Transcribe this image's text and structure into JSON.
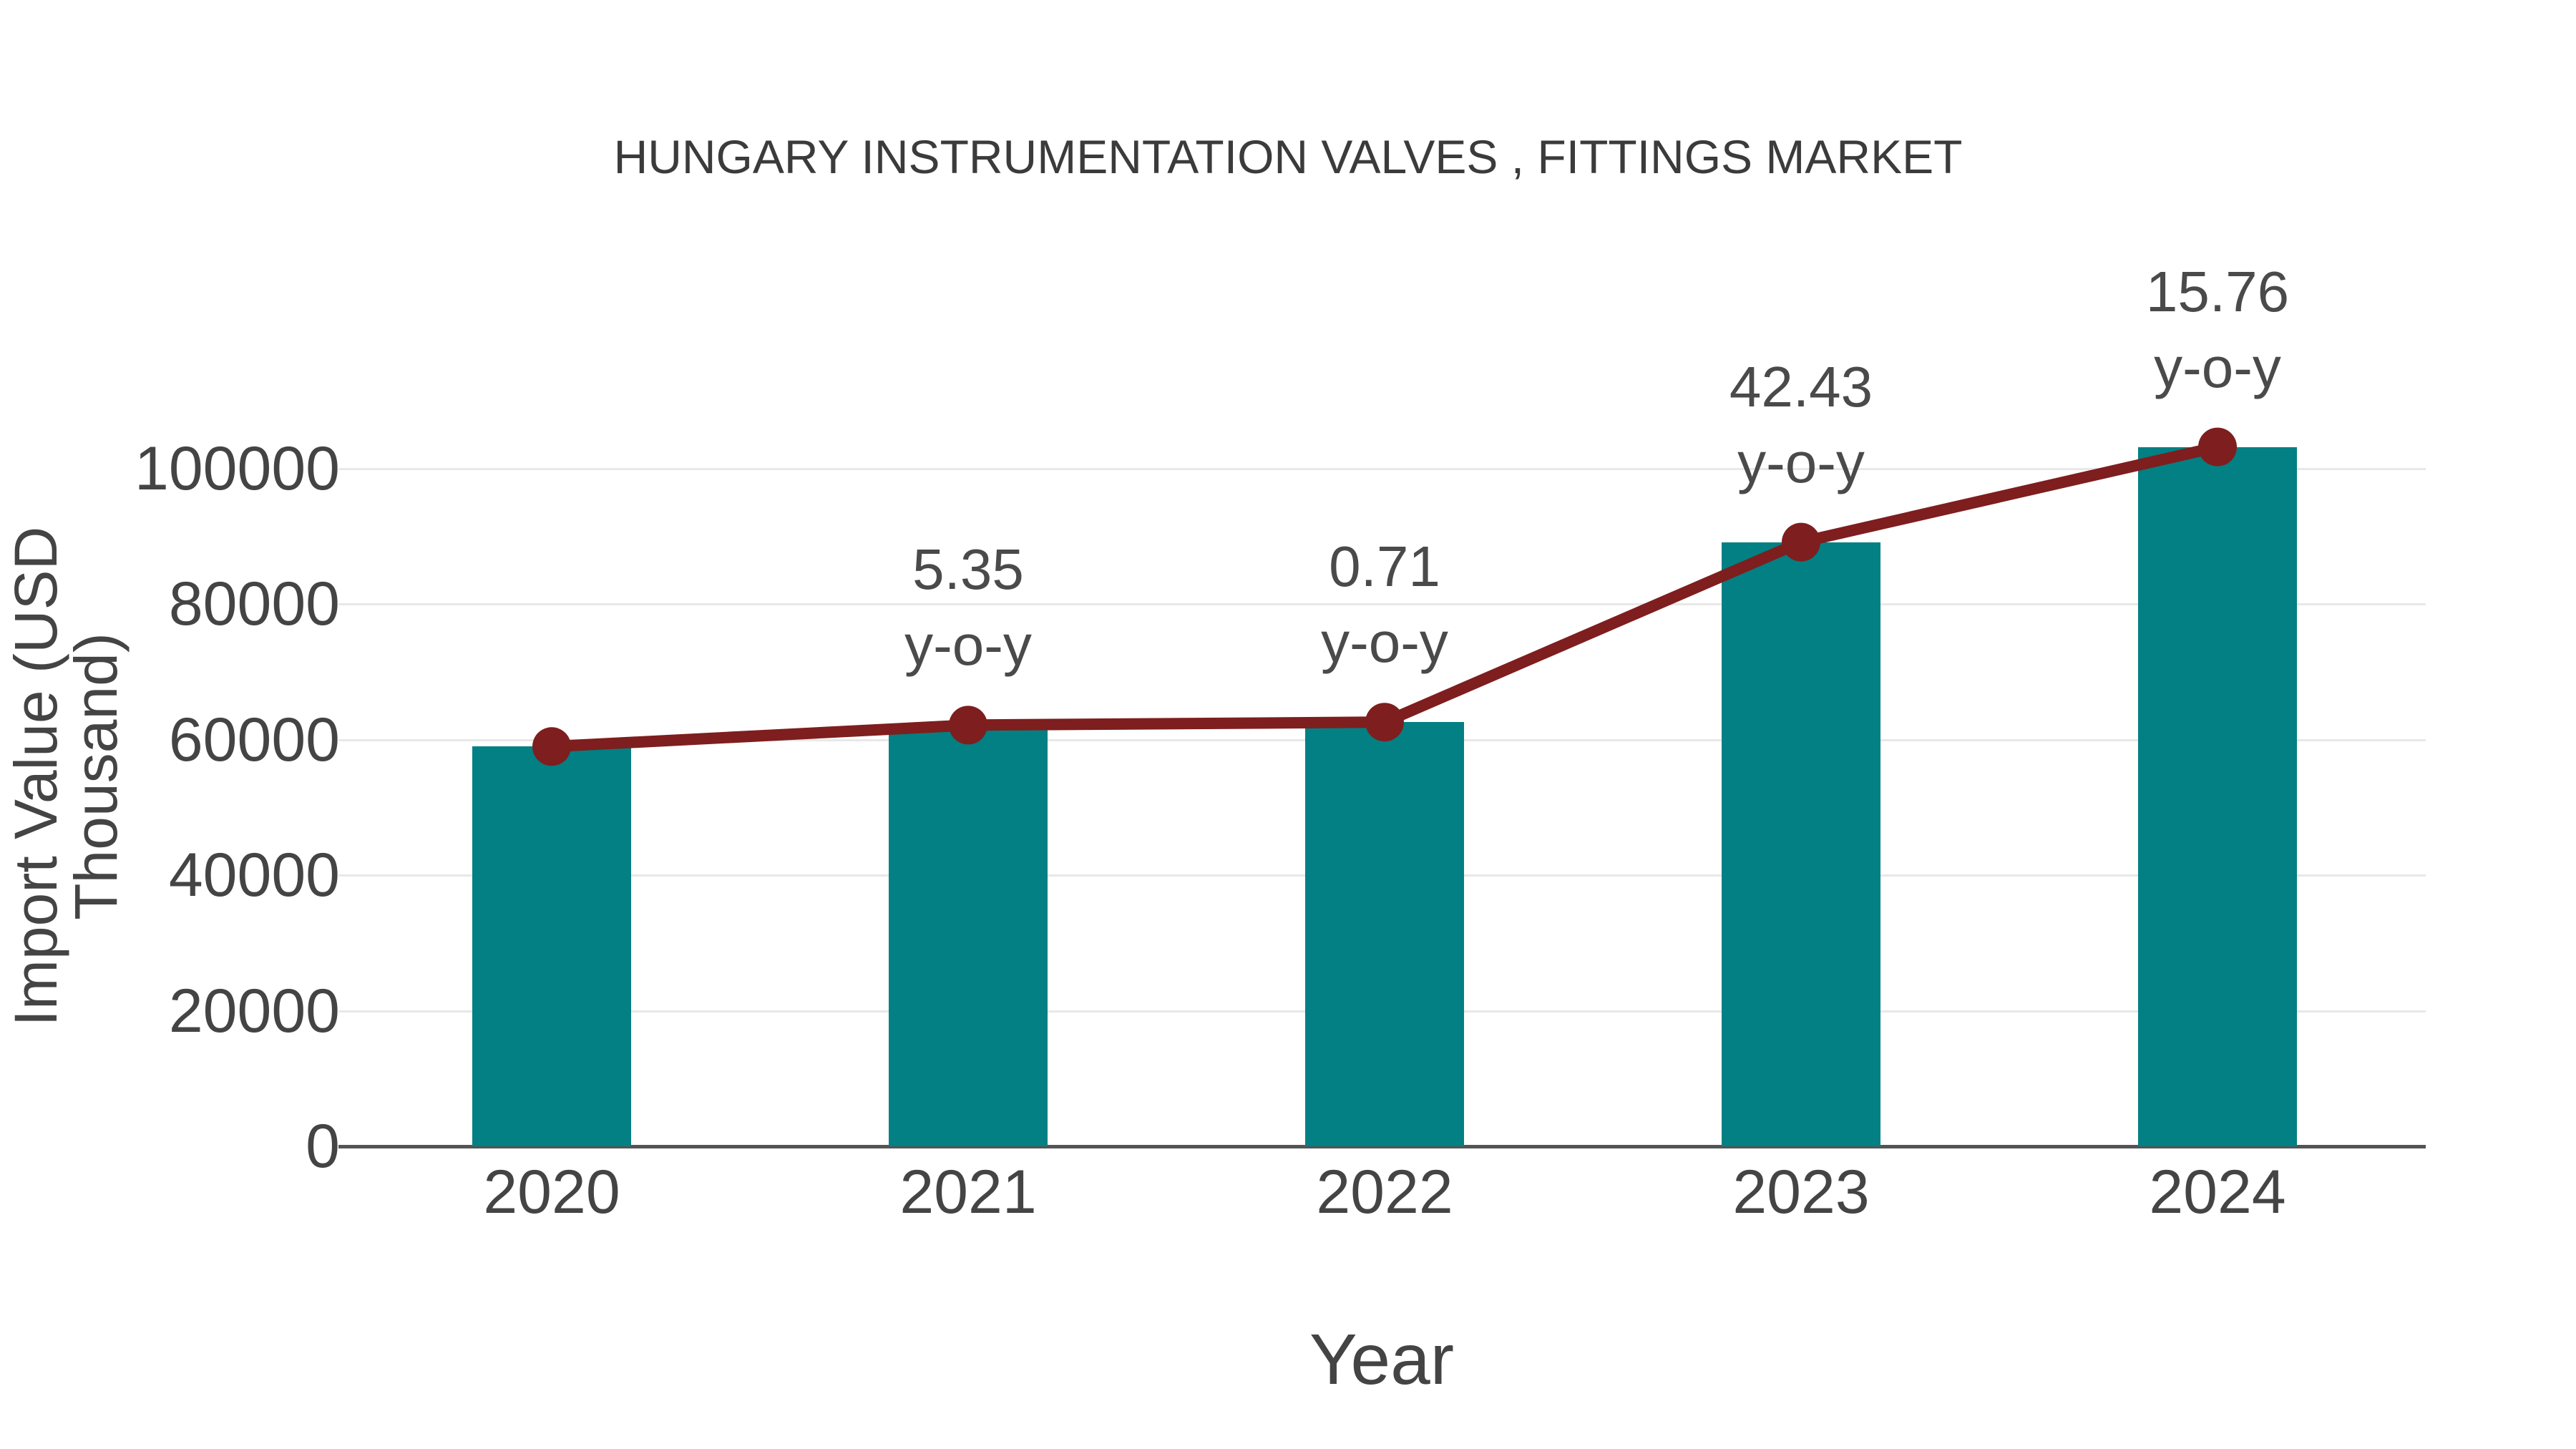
{
  "title": "HUNGARY INSTRUMENTATION VALVES , FITTINGS MARKET",
  "colors": {
    "bar": "#028083",
    "line": "#7E1E1E",
    "grid": "#e8e8e8",
    "axis": "#545454",
    "text": "#444444"
  },
  "chart_data": {
    "type": "bar",
    "title": "HUNGARY INSTRUMENTATION VALVES , FITTINGS MARKET",
    "xlabel": "Year",
    "ylabel": "Import Value (USD Thousand)",
    "categories": [
      "2020",
      "2021",
      "2022",
      "2023",
      "2024"
    ],
    "series": [
      {
        "name": "Import Value (bars)",
        "type": "bar",
        "values": [
          59000,
          62157,
          62598,
          89158,
          103209
        ]
      },
      {
        "name": "Import Value (trend line)",
        "type": "line",
        "values": [
          59000,
          62157,
          62598,
          89158,
          103209
        ]
      }
    ],
    "annotations": [
      {
        "category": "2021",
        "lines": [
          "5.35",
          "y-o-y"
        ]
      },
      {
        "category": "2022",
        "lines": [
          "0.71",
          "y-o-y"
        ]
      },
      {
        "category": "2023",
        "lines": [
          "42.43",
          "y-o-y"
        ]
      },
      {
        "category": "2024",
        "lines": [
          "15.76",
          "y-o-y"
        ]
      }
    ],
    "yticks": [
      0,
      20000,
      40000,
      60000,
      80000,
      100000
    ],
    "ylim": [
      0,
      105500
    ],
    "grid": true,
    "legend": false
  }
}
